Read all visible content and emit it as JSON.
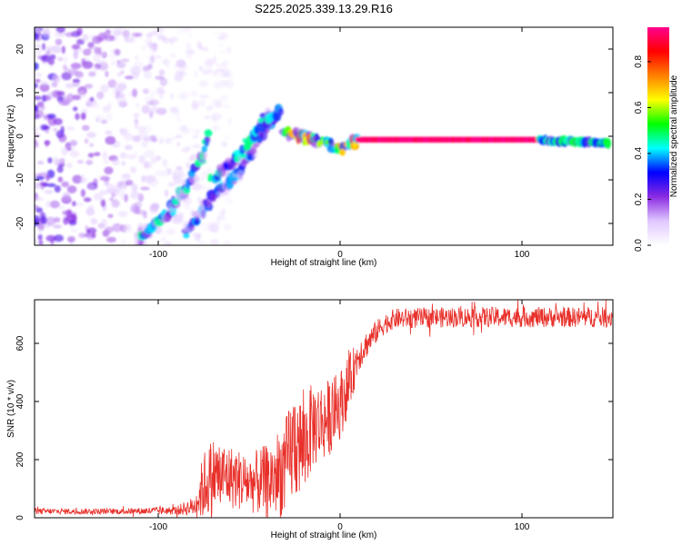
{
  "title": "S225.2025.339.13.29.R16",
  "chart_data": [
    {
      "type": "heatmap",
      "xlabel": "Height of straight line (km)",
      "ylabel": "Frequency (Hz)",
      "xlim": [
        -168,
        150
      ],
      "ylim": [
        -25,
        25
      ],
      "xticks": [
        -100,
        0,
        100
      ],
      "yticks": [
        -20,
        -10,
        0,
        10,
        20
      ],
      "colorbar": {
        "label": "Normalized spectral amplitude",
        "range": [
          0,
          0.95
        ],
        "ticks": [
          0.0,
          0.2,
          0.4,
          0.6,
          0.8
        ],
        "tick_labels": [
          "0.0",
          "0.2",
          "0.4",
          "0.6",
          "0.8"
        ],
        "colormap": [
          "#ffffff",
          "#e0c8ff",
          "#8a2be2",
          "#0000ff",
          "#00ffff",
          "#00ff00",
          "#ffff00",
          "#ff8000",
          "#ff0000",
          "#ff0090"
        ]
      },
      "features": [
        {
          "name": "noise region",
          "x_range": [
            -168,
            -85
          ],
          "freq_range": [
            -25,
            25
          ],
          "amplitude": 0.15
        },
        {
          "name": "rising track A",
          "points": [
            [
              -110,
              -23.5
            ],
            [
              -95,
              -18
            ],
            [
              -85,
              -12
            ],
            [
              -75,
              -4
            ],
            [
              -72,
              2
            ]
          ],
          "amplitude": 0.35
        },
        {
          "name": "rising track B",
          "points": [
            [
              -85,
              -22
            ],
            [
              -70,
              -14
            ],
            [
              -55,
              -8
            ],
            [
              -45,
              -1
            ],
            [
              -35,
              5
            ]
          ],
          "amplitude": 0.3
        },
        {
          "name": "rising track C",
          "points": [
            [
              -70,
              -10
            ],
            [
              -55,
              -4
            ],
            [
              -40,
              4
            ],
            [
              -32,
              6
            ]
          ],
          "amplitude": 0.35
        },
        {
          "name": "transition",
          "points": [
            [
              -30,
              1
            ],
            [
              -20,
              0
            ],
            [
              -10,
              -1
            ],
            [
              0,
              -3
            ],
            [
              10,
              -1
            ]
          ],
          "amplitude": 0.55
        },
        {
          "name": "steady carrier",
          "points": [
            [
              10,
              -0.8
            ],
            [
              60,
              -0.8
            ],
            [
              110,
              -0.8
            ]
          ],
          "amplitude": 0.95
        },
        {
          "name": "carrier tail",
          "points": [
            [
              110,
              -1
            ],
            [
              130,
              -1.2
            ],
            [
              148,
              -1.5
            ]
          ],
          "amplitude": 0.4
        }
      ]
    },
    {
      "type": "line",
      "xlabel": "Height of straight line (km)",
      "ylabel": "SNR (10 * v/v)",
      "xlim": [
        -168,
        150
      ],
      "ylim": [
        0,
        750
      ],
      "xticks": [
        -100,
        0,
        100
      ],
      "yticks": [
        0,
        200,
        400,
        600
      ],
      "color": "#e8302a",
      "series": [
        {
          "name": "SNR",
          "envelope": {
            "x": [
              -168,
              -120,
              -90,
              -80,
              -75,
              -70,
              -60,
              -50,
              -40,
              -30,
              -25,
              -20,
              -15,
              -10,
              -5,
              0,
              5,
              10,
              15,
              20,
              25,
              30,
              60,
              100,
              150
            ],
            "mean": [
              22,
              22,
              25,
              40,
              110,
              150,
              140,
              120,
              125,
              170,
              260,
              240,
              320,
              330,
              350,
              390,
              460,
              560,
              600,
              640,
              670,
              685,
              690,
              690,
              690
            ],
            "amp": [
              10,
              10,
              15,
              35,
              120,
              130,
              110,
              100,
              130,
              170,
              200,
              170,
              150,
              140,
              130,
              120,
              100,
              60,
              45,
              40,
              35,
              35,
              35,
              35,
              35
            ]
          }
        }
      ]
    }
  ]
}
